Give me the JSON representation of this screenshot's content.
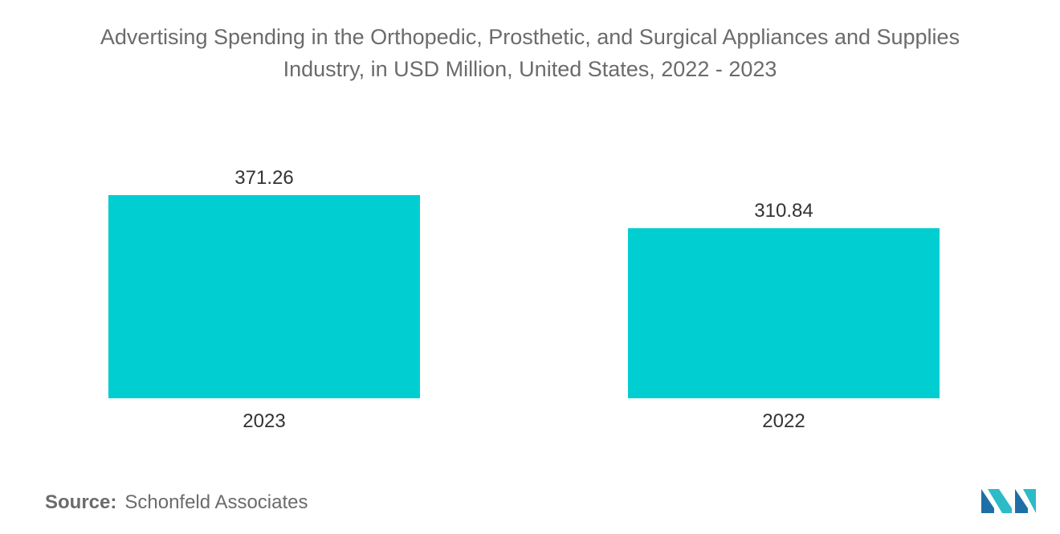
{
  "chart_data": {
    "type": "bar",
    "title_line1": "Advertising Spending in the Orthopedic, Prosthetic, and Surgical Appliances and Supplies",
    "title_line2": "Industry, in USD Million, United States, 2022 - 2023",
    "categories": [
      "2023",
      "2022"
    ],
    "values": [
      371.26,
      310.84
    ],
    "value_labels": [
      "371.26",
      "310.84"
    ],
    "xlabel": "",
    "ylabel": "",
    "ylim": [
      0,
      371.26
    ],
    "grid": false,
    "legend": "none",
    "bar_color": "#00ced1"
  },
  "source": {
    "label": "Source:",
    "text": "Schonfeld Associates"
  },
  "logo": {
    "icon": "mordor-logo-icon",
    "colors": [
      "#1e6fa5",
      "#2bbcc8"
    ]
  }
}
